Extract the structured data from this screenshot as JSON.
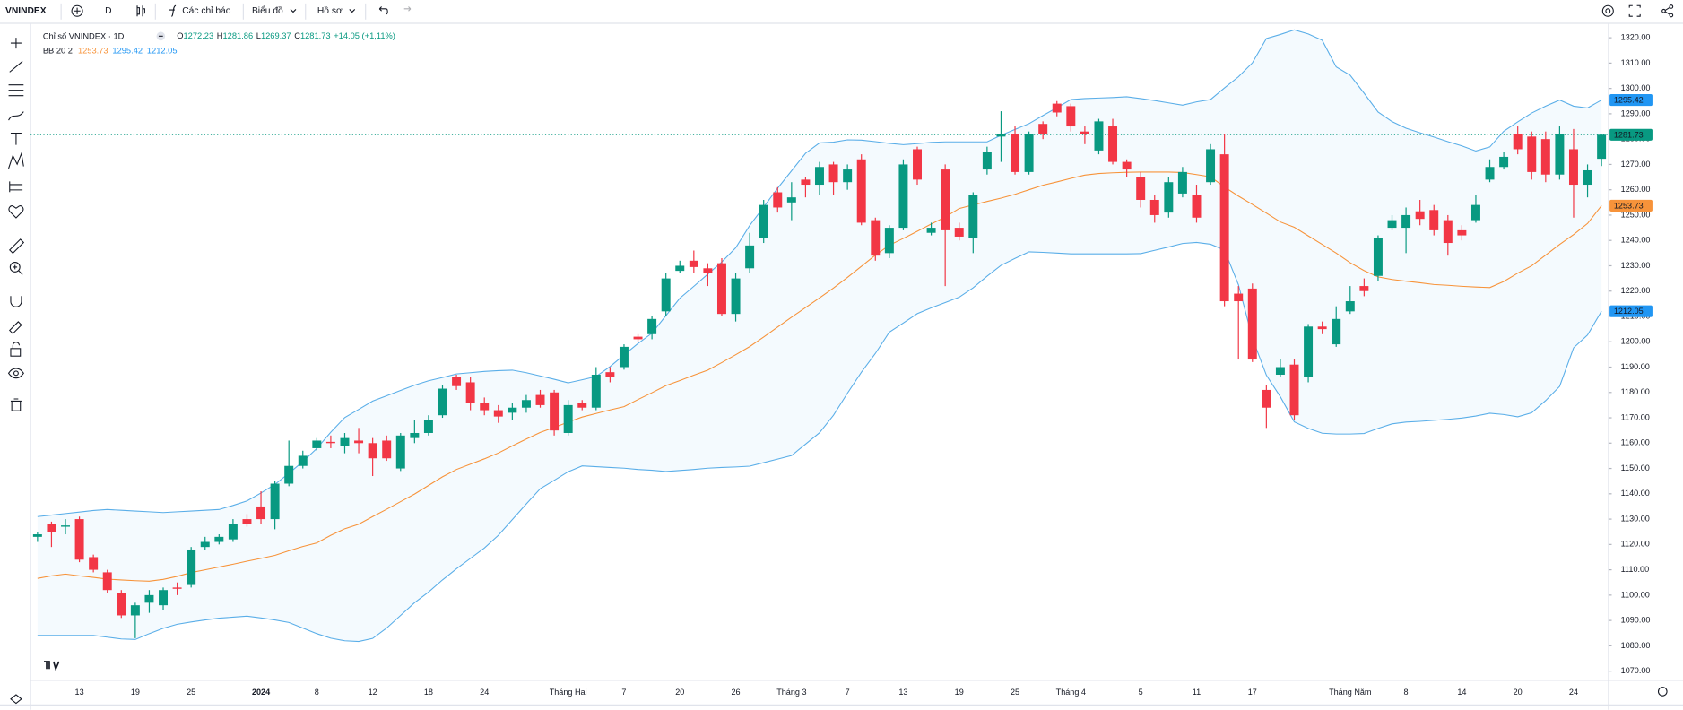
{
  "toolbar": {
    "symbol": "VNINDEX",
    "interval": "D",
    "indicators": "Các chỉ báo",
    "chart": "Biểu đồ",
    "profile": "Hồ sơ"
  },
  "chart_data": {
    "type": "candlestick",
    "title": "Chỉ số VNINDEX · 1D",
    "ohlc_labels": [
      "O",
      "H",
      "L",
      "C"
    ],
    "change_label": "+14.05 (+1,11%)",
    "up_color": "#089981",
    "down_color": "#f23645",
    "categories": [
      null,
      null,
      null,
      "13",
      null,
      null,
      null,
      "19",
      null,
      null,
      null,
      "25",
      null,
      null,
      null,
      null,
      "2024",
      null,
      null,
      null,
      "8",
      null,
      null,
      null,
      "12",
      null,
      null,
      null,
      "18",
      null,
      null,
      null,
      "24",
      null,
      null,
      null,
      null,
      null,
      "Tháng Hai",
      null,
      null,
      null,
      "7",
      null,
      null,
      null,
      "20",
      null,
      null,
      null,
      "26",
      null,
      null,
      null,
      "Tháng 3",
      null,
      null,
      null,
      "7",
      null,
      null,
      null,
      "13",
      null,
      null,
      null,
      "19",
      null,
      null,
      null,
      "25",
      null,
      null,
      null,
      "Tháng 4",
      null,
      null,
      null,
      null,
      "5",
      null,
      null,
      null,
      "11",
      null,
      null,
      null,
      "17",
      null,
      null,
      null,
      null,
      null,
      null,
      "Tháng Năm",
      null,
      null,
      null,
      "8",
      null,
      null,
      null,
      "14",
      null,
      null,
      null,
      "20",
      null,
      null,
      null,
      "24",
      null,
      null
    ],
    "open": [
      1123,
      1128,
      1127,
      1130,
      1115,
      1109,
      1101,
      1092,
      1097,
      1096,
      1103,
      1104,
      1119,
      1121,
      1122,
      1130,
      1135,
      1130,
      1144,
      1151,
      1158,
      1160.5,
      1159,
      1161,
      1160,
      1161,
      1150,
      1162,
      1164,
      1171,
      1186,
      1184,
      1176,
      1173,
      1172,
      1174,
      1179,
      1180,
      1164,
      1176,
      1174,
      1188,
      1190,
      1202,
      1203,
      1212,
      1228,
      1232,
      1229,
      1231,
      1211,
      1229,
      1241,
      1259,
      1255,
      1264,
      1262,
      1270,
      1263,
      1272,
      1248,
      1235,
      1245,
      1276,
      1243,
      1268,
      1245,
      1241,
      1268,
      1281,
      1282,
      1267,
      1286,
      1294,
      1293,
      1283,
      1275.5,
      1285,
      1271,
      1265,
      1256,
      1251,
      1258.5,
      1258,
      1263,
      1274,
      1219,
      1221,
      1181,
      1187,
      1191,
      1186,
      1206,
      1199,
      1212,
      1222,
      1226,
      1245,
      1245,
      1251.5,
      1252,
      1248,
      1244,
      1248,
      1264,
      1269,
      1282,
      1281,
      1280,
      1266,
      1276,
      1262,
      1272.23
    ],
    "high": [
      1125,
      1129,
      1130,
      1131,
      1116,
      1110,
      1102,
      1097,
      1102,
      1103,
      1105,
      1119,
      1123,
      1124,
      1130,
      1132,
      1141,
      1145,
      1161,
      1157,
      1162,
      1163,
      1164,
      1166,
      1162,
      1163,
      1164,
      1169,
      1171,
      1183,
      1187,
      1186,
      1178,
      1175,
      1176,
      1179,
      1181,
      1181,
      1177,
      1177,
      1190,
      1190,
      1199,
      1203,
      1210,
      1227,
      1232,
      1236,
      1231,
      1233,
      1227,
      1243,
      1256,
      1261,
      1263,
      1265,
      1271,
      1271,
      1270,
      1274,
      1249,
      1246,
      1272,
      1277,
      1247,
      1270,
      1247,
      1259,
      1277,
      1291,
      1285,
      1283,
      1287,
      1295,
      1294,
      1285,
      1288,
      1288,
      1272,
      1267,
      1258,
      1265,
      1269,
      1262,
      1278,
      1282,
      1222,
      1223,
      1183,
      1193,
      1193,
      1207,
      1208,
      1214,
      1222,
      1225,
      1242,
      1250,
      1253,
      1256,
      1254,
      1250,
      1246,
      1258,
      1272,
      1275,
      1285,
      1283,
      1283,
      1285,
      1284,
      1270,
      1281.86
    ],
    "low": [
      1121,
      1119,
      1124,
      1113,
      1109,
      1101,
      1091,
      1083,
      1093,
      1094,
      1100,
      1103,
      1118,
      1120,
      1121,
      1127,
      1128,
      1126,
      1143,
      1150,
      1157,
      1158,
      1156,
      1156,
      1147,
      1153,
      1149,
      1160,
      1163,
      1170,
      1181,
      1173,
      1171,
      1168,
      1169,
      1172,
      1174,
      1163,
      1163,
      1173,
      1173,
      1184,
      1189,
      1200,
      1201,
      1210,
      1227,
      1227,
      1222,
      1210,
      1208,
      1227,
      1239,
      1251,
      1248,
      1257,
      1258,
      1258,
      1260,
      1246,
      1232,
      1233,
      1244,
      1262,
      1242,
      1222,
      1240,
      1235,
      1266,
      1271,
      1266,
      1266,
      1280,
      1289,
      1283,
      1278,
      1274,
      1270,
      1265,
      1253,
      1247,
      1249,
      1257,
      1247,
      1262,
      1214,
      1193,
      1192,
      1166,
      1186,
      1169,
      1184,
      1203,
      1198,
      1211,
      1218,
      1224,
      1244,
      1235,
      1246,
      1242,
      1234,
      1240,
      1247,
      1263,
      1268,
      1274,
      1264,
      1263,
      1264,
      1249,
      1257,
      1269.37
    ],
    "close": [
      1124,
      1125,
      1127.5,
      1114,
      1110,
      1102,
      1092,
      1096,
      1100,
      1102,
      1102.5,
      1118,
      1121,
      1123,
      1128,
      1128,
      1130,
      1144,
      1151,
      1155,
      1161,
      1160,
      1162,
      1160,
      1154,
      1154,
      1163,
      1164,
      1169,
      1181.5,
      1182.5,
      1176,
      1173,
      1170.5,
      1174,
      1177,
      1175,
      1165,
      1175,
      1174,
      1187,
      1186,
      1198,
      1201,
      1209,
      1225,
      1230,
      1229.5,
      1227,
      1211,
      1225,
      1238,
      1254,
      1253,
      1257,
      1262,
      1269,
      1263,
      1268,
      1247,
      1234,
      1245,
      1270,
      1264,
      1245,
      1244,
      1241.5,
      1258,
      1275,
      1282,
      1267,
      1282,
      1282,
      1290.5,
      1285,
      1282,
      1287,
      1271,
      1268,
      1256,
      1250,
      1263,
      1267,
      1249,
      1276,
      1216,
      1216,
      1193,
      1174,
      1190,
      1171,
      1206,
      1205,
      1209,
      1216,
      1220,
      1241,
      1248,
      1250,
      1248.5,
      1244,
      1239,
      1242,
      1254,
      1269,
      1273,
      1276,
      1267,
      1266,
      1282,
      1262,
      1267.68,
      1281.73
    ],
    "bb": {
      "label": "BB 20 2",
      "fill": "rgba(33,150,243,0.05)",
      "basis": {
        "color": "#f7933a",
        "values": [
          1106.6,
          1107.6,
          1108.3,
          1107.6,
          1107.0,
          1106.3,
          1106.0,
          1105.7,
          1105.5,
          1106.2,
          1107.4,
          1108.9,
          1110.0,
          1111.1,
          1112.2,
          1113.4,
          1114.5,
          1115.7,
          1117.5,
          1119.2,
          1120.6,
          1123.6,
          1126.2,
          1128.0,
          1131.0,
          1133.9,
          1136.9,
          1139.9,
          1143.3,
          1146.7,
          1149.6,
          1151.7,
          1153.8,
          1156.1,
          1158.9,
          1161.6,
          1164.2,
          1166.2,
          1168.3,
          1170.3,
          1171.7,
          1173.1,
          1174.4,
          1177.2,
          1179.9,
          1182.7,
          1184.7,
          1186.8,
          1188.8,
          1191.8,
          1194.9,
          1198.1,
          1201.9,
          1205.8,
          1209.7,
          1213.5,
          1217.3,
          1221.2,
          1225.4,
          1229.8,
          1234.2,
          1238.1,
          1240.8,
          1243.6,
          1246.5,
          1249.2,
          1252.6,
          1254.0,
          1255.4,
          1256.7,
          1258.2,
          1260.0,
          1261.8,
          1263.1,
          1264.5,
          1265.8,
          1266.4,
          1266.7,
          1266.9,
          1267.0,
          1267.0,
          1267.0,
          1266.8,
          1266.0,
          1265.1,
          1261.1,
          1257.5,
          1254.2,
          1250.8,
          1247.3,
          1245.2,
          1241.8,
          1238.4,
          1235.0,
          1231.2,
          1228.1,
          1225.6,
          1224.6,
          1223.9,
          1223.3,
          1222.6,
          1222.3,
          1221.9,
          1221.6,
          1221.4,
          1223.8,
          1227.1,
          1230.0,
          1234.2,
          1238.4,
          1242.3,
          1246.7,
          1253.73
        ]
      },
      "upper": {
        "color": "#5aaee8",
        "label_color": "#2196f3",
        "values": [
          1131.0,
          1131.6,
          1132.2,
          1132.8,
          1133.4,
          1133.8,
          1133.5,
          1133.2,
          1132.9,
          1132.6,
          1132.9,
          1133.2,
          1133.5,
          1133.8,
          1135.4,
          1137.2,
          1140.3,
          1143.7,
          1148.1,
          1152.7,
          1157.9,
          1164.3,
          1170.1,
          1173.3,
          1176.6,
          1178.7,
          1180.8,
          1182.9,
          1184.6,
          1185.9,
          1187.3,
          1187.8,
          1188.3,
          1188.6,
          1188.8,
          1187.8,
          1186.5,
          1185.2,
          1183.8,
          1185.0,
          1186.3,
          1190.2,
          1194.8,
          1199.3,
          1203.4,
          1210.3,
          1217.2,
          1221.9,
          1226.7,
          1231.5,
          1237.1,
          1245.9,
          1253.2,
          1260.6,
          1267.5,
          1274.4,
          1278.5,
          1278.8,
          1279.7,
          1279.6,
          1279.0,
          1278.3,
          1277.8,
          1278.2,
          1278.7,
          1278.9,
          1278.9,
          1278.9,
          1278.9,
          1281.5,
          1283.8,
          1286.1,
          1289.3,
          1292.4,
          1295.6,
          1296.0,
          1296.2,
          1296.4,
          1296.7,
          1296.0,
          1295.2,
          1294.3,
          1293.4,
          1294.7,
          1295.6,
          1300.2,
          1304.6,
          1310.1,
          1319.7,
          1321.3,
          1323.1,
          1321.5,
          1319.0,
          1308.5,
          1305.2,
          1298.1,
          1290.7,
          1286.9,
          1284.3,
          1282.5,
          1280.8,
          1279.0,
          1277.3,
          1275.3,
          1276.9,
          1283.1,
          1286.8,
          1290.3,
          1293.0,
          1295.4,
          1293.0,
          1292.3,
          1295.42
        ]
      },
      "lower": {
        "color": "#5aaee8",
        "label_color": "#2196f3",
        "values": [
          1084.1,
          1084.1,
          1084.1,
          1084.1,
          1084.1,
          1083.4,
          1082.7,
          1082.5,
          1084.8,
          1086.9,
          1088.5,
          1089.4,
          1090.2,
          1090.9,
          1091.3,
          1091.7,
          1091.0,
          1090.2,
          1089.2,
          1087.0,
          1084.8,
          1083.0,
          1082.0,
          1081.7,
          1082.9,
          1087.0,
          1092.0,
          1097.0,
          1101.2,
          1106.0,
          1110.4,
          1114.5,
          1118.6,
          1123.6,
          1129.8,
          1136.0,
          1142.0,
          1145.3,
          1148.7,
          1151.0,
          1150.7,
          1150.4,
          1150.1,
          1149.6,
          1149.3,
          1148.8,
          1149.2,
          1149.6,
          1150.1,
          1150.4,
          1150.6,
          1150.9,
          1152.3,
          1153.7,
          1155.1,
          1159.6,
          1164.1,
          1171.0,
          1179.7,
          1188.0,
          1195.4,
          1203.8,
          1207.4,
          1211.1,
          1213.4,
          1215.5,
          1217.6,
          1221.3,
          1225.9,
          1230.2,
          1232.9,
          1235.5,
          1235.3,
          1235.0,
          1234.7,
          1234.7,
          1234.7,
          1234.7,
          1234.7,
          1234.8,
          1236.1,
          1237.4,
          1238.8,
          1239.2,
          1238.5,
          1236.2,
          1222.5,
          1201.4,
          1186.8,
          1178.3,
          1168.4,
          1165.8,
          1163.9,
          1163.6,
          1163.6,
          1163.8,
          1165.8,
          1167.6,
          1168.3,
          1168.6,
          1169.0,
          1169.4,
          1169.9,
          1170.7,
          1171.8,
          1171.3,
          1170.4,
          1172.0,
          1176.8,
          1182.4,
          1197.6,
          1202.7,
          1212.05
        ]
      }
    },
    "ylim": [
      1066.6,
      1325.5
    ],
    "yticks": [
      {
        "value": 1070,
        "label": "1070.00"
      },
      {
        "value": 1080,
        "label": "1080.00"
      },
      {
        "value": 1090,
        "label": "1090.00"
      },
      {
        "value": 1100,
        "label": "1100.00"
      },
      {
        "value": 1110,
        "label": "1110.00"
      },
      {
        "value": 1120,
        "label": "1120.00"
      },
      {
        "value": 1130,
        "label": "1130.00"
      },
      {
        "value": 1140,
        "label": "1140.00"
      },
      {
        "value": 1150,
        "label": "1150.00"
      },
      {
        "value": 1160,
        "label": "1160.00"
      },
      {
        "value": 1170,
        "label": "1170.00"
      },
      {
        "value": 1180,
        "label": "1180.00"
      },
      {
        "value": 1190,
        "label": "1190.00"
      },
      {
        "value": 1200,
        "label": "1200.00"
      },
      {
        "value": 1210,
        "label": "1210.00"
      },
      {
        "value": 1220,
        "label": "1220.00"
      },
      {
        "value": 1230,
        "label": "1230.00"
      },
      {
        "value": 1240,
        "label": "1240.00"
      },
      {
        "value": 1250,
        "label": "1250.00"
      },
      {
        "value": 1260,
        "label": "1260.00"
      },
      {
        "value": 1270,
        "label": "1270.00"
      },
      {
        "value": 1280,
        "label": "1280.00"
      },
      {
        "value": 1290,
        "label": "1290.00"
      },
      {
        "value": 1300,
        "label": "1300.00"
      },
      {
        "value": 1310,
        "label": "1310.00"
      },
      {
        "value": 1320,
        "label": "1320.00"
      }
    ],
    "grid": false
  }
}
